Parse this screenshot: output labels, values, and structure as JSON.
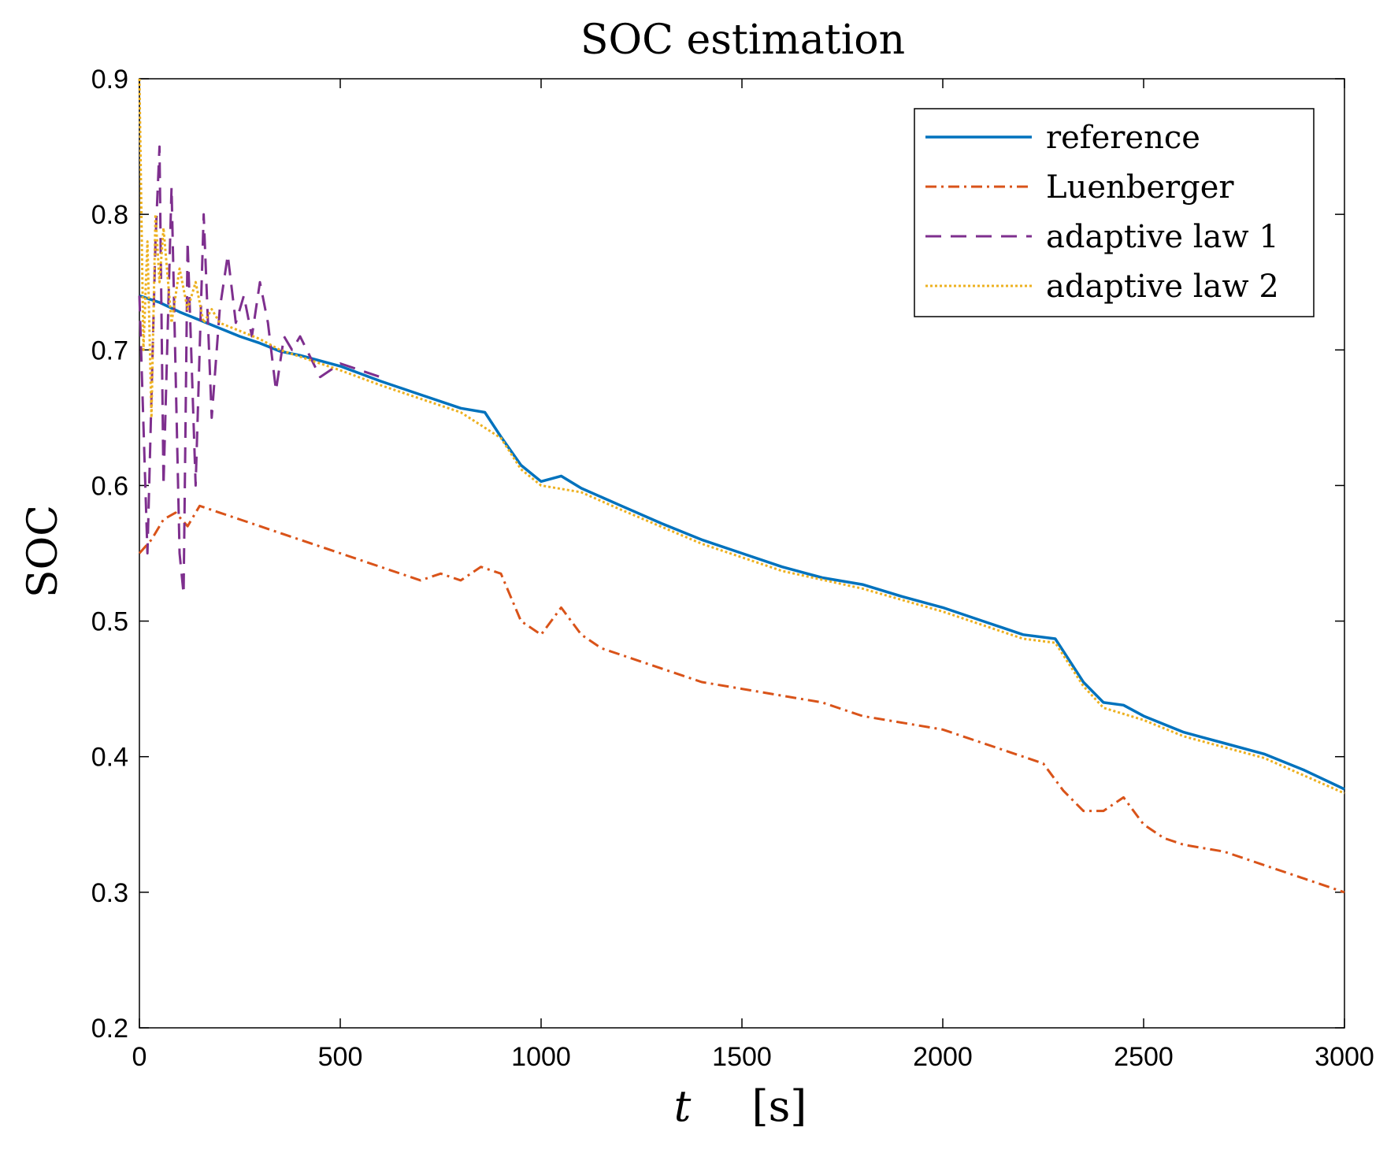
{
  "chart_data": {
    "type": "line",
    "title": "SOC estimation",
    "xlabel_var": "t",
    "xlabel_unit": "[s]",
    "ylabel": "SOC",
    "xlim": [
      0,
      3000
    ],
    "ylim": [
      0.2,
      0.9
    ],
    "xticks": [
      0,
      500,
      1000,
      1500,
      2000,
      2500,
      3000
    ],
    "yticks": [
      0.2,
      0.3,
      0.4,
      0.5,
      0.6,
      0.7,
      0.8,
      0.9
    ],
    "xtick_labels": [
      "0",
      "500",
      "1000",
      "1500",
      "2000",
      "2500",
      "3000"
    ],
    "ytick_labels": [
      "0.2",
      "0.3",
      "0.4",
      "0.5",
      "0.6",
      "0.7",
      "0.8",
      "0.9"
    ],
    "grid": false,
    "legend_position": "top-right",
    "series": [
      {
        "name": "reference",
        "color": "#0072BD",
        "style": "solid",
        "x": [
          0,
          50,
          100,
          150,
          200,
          250,
          300,
          350,
          400,
          450,
          500,
          600,
          700,
          800,
          860,
          900,
          950,
          1000,
          1050,
          1100,
          1200,
          1300,
          1400,
          1500,
          1600,
          1700,
          1800,
          1900,
          2000,
          2100,
          2200,
          2280,
          2350,
          2400,
          2450,
          2500,
          2600,
          2700,
          2800,
          2900,
          3000
        ],
        "y": [
          0.74,
          0.735,
          0.728,
          0.722,
          0.716,
          0.71,
          0.705,
          0.699,
          0.696,
          0.692,
          0.688,
          0.677,
          0.667,
          0.657,
          0.654,
          0.636,
          0.615,
          0.603,
          0.607,
          0.598,
          0.585,
          0.572,
          0.56,
          0.55,
          0.54,
          0.532,
          0.527,
          0.518,
          0.51,
          0.5,
          0.49,
          0.487,
          0.455,
          0.44,
          0.438,
          0.43,
          0.418,
          0.41,
          0.402,
          0.39,
          0.376
        ]
      },
      {
        "name": "Luenberger",
        "color": "#D95319",
        "style": "dashdot",
        "x": [
          0,
          30,
          60,
          90,
          120,
          150,
          200,
          250,
          300,
          350,
          400,
          450,
          500,
          550,
          600,
          650,
          700,
          750,
          800,
          850,
          900,
          950,
          1000,
          1050,
          1100,
          1150,
          1200,
          1250,
          1300,
          1400,
          1500,
          1600,
          1700,
          1800,
          1900,
          2000,
          2100,
          2200,
          2250,
          2300,
          2350,
          2400,
          2450,
          2500,
          2550,
          2600,
          2700,
          2800,
          2900,
          3000
        ],
        "y": [
          0.55,
          0.56,
          0.575,
          0.58,
          0.57,
          0.585,
          0.58,
          0.575,
          0.57,
          0.565,
          0.56,
          0.555,
          0.55,
          0.545,
          0.54,
          0.535,
          0.53,
          0.535,
          0.53,
          0.54,
          0.535,
          0.5,
          0.49,
          0.51,
          0.49,
          0.48,
          0.475,
          0.47,
          0.465,
          0.455,
          0.45,
          0.445,
          0.44,
          0.43,
          0.425,
          0.42,
          0.41,
          0.4,
          0.395,
          0.375,
          0.36,
          0.36,
          0.37,
          0.35,
          0.34,
          0.335,
          0.33,
          0.32,
          0.31,
          0.3
        ]
      },
      {
        "name": "adaptive law 1",
        "color": "#7E2F8E",
        "style": "dashed",
        "x": [
          0,
          20,
          40,
          50,
          60,
          80,
          100,
          110,
          120,
          140,
          160,
          180,
          200,
          220,
          240,
          260,
          280,
          300,
          320,
          340,
          360,
          380,
          400,
          450,
          500,
          550,
          600
        ],
        "y": [
          0.74,
          0.55,
          0.78,
          0.85,
          0.6,
          0.82,
          0.55,
          0.52,
          0.78,
          0.6,
          0.8,
          0.65,
          0.73,
          0.77,
          0.72,
          0.74,
          0.71,
          0.75,
          0.72,
          0.67,
          0.71,
          0.7,
          0.71,
          0.68,
          0.69,
          0.685,
          0.68
        ]
      },
      {
        "name": "adaptive law 2",
        "color": "#EDB120",
        "style": "dotted",
        "x": [
          0,
          10,
          20,
          30,
          40,
          50,
          60,
          80,
          100,
          120,
          140,
          160,
          180,
          200,
          250,
          300,
          350,
          400,
          500,
          600,
          700,
          800,
          900,
          950,
          1000,
          1100,
          1200,
          1400,
          1600,
          1800,
          2000,
          2200,
          2280,
          2350,
          2400,
          2500,
          2600,
          2800,
          3000
        ],
        "y": [
          0.9,
          0.7,
          0.78,
          0.65,
          0.8,
          0.75,
          0.79,
          0.72,
          0.76,
          0.73,
          0.75,
          0.72,
          0.73,
          0.72,
          0.714,
          0.708,
          0.7,
          0.695,
          0.685,
          0.674,
          0.664,
          0.654,
          0.635,
          0.612,
          0.6,
          0.595,
          0.582,
          0.557,
          0.537,
          0.524,
          0.507,
          0.487,
          0.484,
          0.452,
          0.436,
          0.427,
          0.415,
          0.399,
          0.373
        ]
      }
    ]
  }
}
